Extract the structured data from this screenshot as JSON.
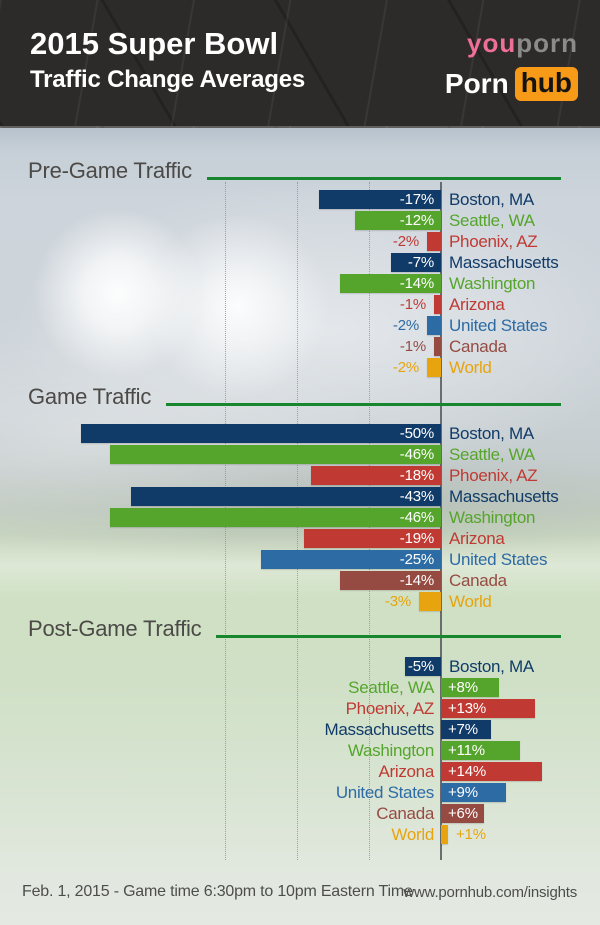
{
  "header": {
    "title": "2015 Super Bowl",
    "subtitle": "Traffic Change Averages",
    "logos": {
      "youporn_you": "you",
      "youporn_porn": "porn",
      "pornhub_porn": "Porn",
      "pornhub_hub": "hub"
    }
  },
  "colors": {
    "section_rule_green": "#18862f",
    "heading_text": "#4b4a47",
    "axis_line": "#5d6164",
    "gridline": "#8b9197",
    "youporn_pink": "#ef7097",
    "youporn_gray": "#8b8b8b",
    "pornhub_orange": "#f79a17",
    "bar_navy": "#103b69",
    "bar_green": "#55a52c",
    "bar_red": "#c03a33",
    "bar_blue": "#2d6ba4",
    "bar_maroon": "#964b42",
    "bar_orange": "#e8a40e",
    "value_inside_text": "#ffffff"
  },
  "chart_data": [
    {
      "type": "bar",
      "orientation": "horizontal",
      "title": "Pre-Game Traffic",
      "unit": "%",
      "xlim": [
        -50,
        15
      ],
      "axis_at": 0,
      "gridlines_at": [
        -30,
        -20,
        -10
      ],
      "legend": "none",
      "categories": [
        "Boston, MA",
        "Seattle, WA",
        "Phoenix, AZ",
        "Massachusetts",
        "Washington",
        "Arizona",
        "United States",
        "Canada",
        "World"
      ],
      "values": [
        -17,
        -12,
        -2,
        -7,
        -14,
        -1,
        -2,
        -1,
        -2
      ],
      "value_labels": [
        "-17%",
        "-12%",
        "-2%",
        "-7%",
        "-14%",
        "-1%",
        "-2%",
        "-1%",
        "-2%"
      ],
      "bar_colors": [
        "#103b69",
        "#55a52c",
        "#c03a33",
        "#103b69",
        "#55a52c",
        "#c03a33",
        "#2d6ba4",
        "#964b42",
        "#e8a40e"
      ]
    },
    {
      "type": "bar",
      "orientation": "horizontal",
      "title": "Game Traffic",
      "unit": "%",
      "xlim": [
        -50,
        15
      ],
      "axis_at": 0,
      "gridlines_at": [
        -30,
        -20,
        -10
      ],
      "legend": "none",
      "categories": [
        "Boston, MA",
        "Seattle, WA",
        "Phoenix, AZ",
        "Massachusetts",
        "Washington",
        "Arizona",
        "United States",
        "Canada",
        "World"
      ],
      "values": [
        -50,
        -46,
        -18,
        -43,
        -46,
        -19,
        -25,
        -14,
        -3
      ],
      "value_labels": [
        "-50%",
        "-46%",
        "-18%",
        "-43%",
        "-46%",
        "-19%",
        "-25%",
        "-14%",
        "-3%"
      ],
      "bar_colors": [
        "#103b69",
        "#55a52c",
        "#c03a33",
        "#103b69",
        "#55a52c",
        "#c03a33",
        "#2d6ba4",
        "#964b42",
        "#e8a40e"
      ]
    },
    {
      "type": "bar",
      "orientation": "horizontal",
      "title": "Post-Game Traffic",
      "unit": "%",
      "xlim": [
        -50,
        15
      ],
      "axis_at": 0,
      "gridlines_at": [
        -30,
        -20,
        -10
      ],
      "legend": "none",
      "categories": [
        "Boston, MA",
        "Seattle, WA",
        "Phoenix, AZ",
        "Massachusetts",
        "Washington",
        "Arizona",
        "United States",
        "Canada",
        "World"
      ],
      "values": [
        -5,
        8,
        13,
        7,
        11,
        14,
        9,
        6,
        1
      ],
      "value_labels": [
        "-5%",
        "+8%",
        "+13%",
        "+7%",
        "+11%",
        "+14%",
        "+9%",
        "+6%",
        "+1%"
      ],
      "bar_colors": [
        "#103b69",
        "#55a52c",
        "#c03a33",
        "#103b69",
        "#55a52c",
        "#c03a33",
        "#2d6ba4",
        "#964b42",
        "#e8a40e"
      ]
    }
  ],
  "footer": {
    "left": "Feb. 1, 2015 - Game time 6:30pm to 10pm Eastern Time",
    "right": "www.pornhub.com/insights"
  }
}
